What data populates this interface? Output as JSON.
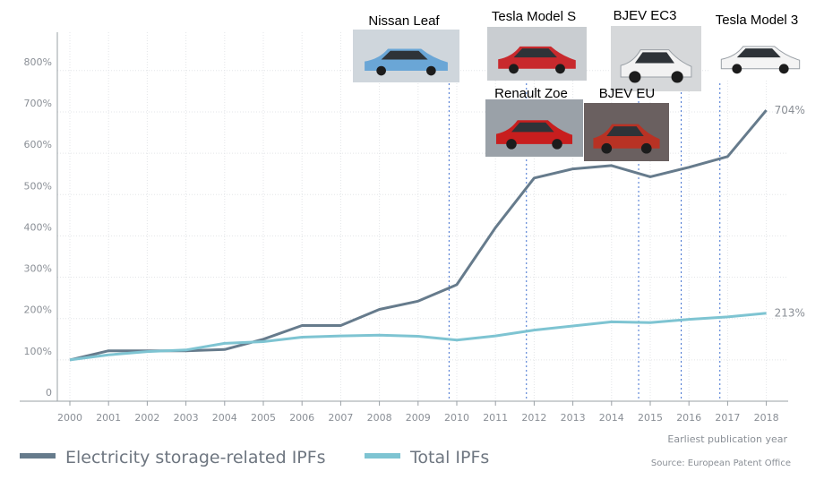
{
  "chart_data": {
    "type": "line",
    "xlabel": "Earliest publication year",
    "source": "Source: European Patent Office",
    "x": [
      "2000",
      "2001",
      "2002",
      "2003",
      "2004",
      "2005",
      "2006",
      "2007",
      "2008",
      "2009",
      "2010",
      "2011",
      "2012",
      "2013",
      "2014",
      "2015",
      "2016",
      "2017",
      "2018"
    ],
    "y_ticks": [
      "0",
      "100%",
      "200%",
      "300%",
      "400%",
      "500%",
      "600%",
      "700%",
      "800%"
    ],
    "ylim": [
      0,
      900
    ],
    "grid": true,
    "legend_position": "bottom",
    "series": [
      {
        "name": "Electricity storage-related IPFs",
        "color": "#667b8c",
        "values": [
          100,
          122,
          122,
          122,
          125,
          150,
          183,
          183,
          222,
          242,
          282,
          420,
          540,
          562,
          570,
          543,
          566,
          592,
          704
        ],
        "end_label": "704%"
      },
      {
        "name": "Total IPFs",
        "color": "#7ec4d2",
        "values": [
          100,
          112,
          120,
          124,
          140,
          144,
          155,
          158,
          160,
          157,
          148,
          158,
          172,
          182,
          192,
          190,
          198,
          204,
          213
        ],
        "end_label": "213%"
      }
    ],
    "annotations": [
      {
        "label": "Nissan Leaf",
        "year": 2010,
        "img": "nissan"
      },
      {
        "label": "Tesla Model S",
        "year": 2012,
        "img": "teslas"
      },
      {
        "label": "Renault Zoe",
        "year": 2012,
        "img": "zoe"
      },
      {
        "label": "BJEV EU",
        "year": 2015,
        "img": "bjeveu"
      },
      {
        "label": "BJEV EC3",
        "year": 2016,
        "img": "bjevec3"
      },
      {
        "label": "Tesla Model 3",
        "year": 2017,
        "img": "tesla3"
      }
    ]
  }
}
